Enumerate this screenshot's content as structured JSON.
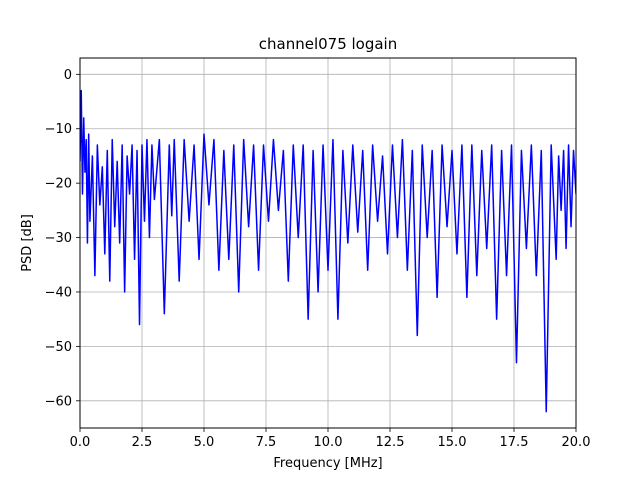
{
  "chart_data": {
    "type": "line",
    "title": "channel075 logain",
    "xlabel": "Frequency [MHz]",
    "ylabel": "PSD [dB]",
    "xlim": [
      0.0,
      20.0
    ],
    "ylim": [
      -65,
      3
    ],
    "xticks": [
      0.0,
      2.5,
      5.0,
      7.5,
      10.0,
      12.5,
      15.0,
      17.5,
      20.0
    ],
    "xtick_labels": [
      "0.0",
      "2.5",
      "5.0",
      "7.5",
      "10.0",
      "12.5",
      "15.0",
      "17.5",
      "20.0"
    ],
    "yticks": [
      0,
      -10,
      -20,
      -30,
      -40,
      -50,
      -60
    ],
    "ytick_labels": [
      "0",
      "−10",
      "−20",
      "−30",
      "−40",
      "−50",
      "−60"
    ],
    "grid": true,
    "series": [
      {
        "color": "#0000ff",
        "x": [
          0.0,
          0.05,
          0.1,
          0.15,
          0.2,
          0.25,
          0.3,
          0.35,
          0.4,
          0.5,
          0.6,
          0.7,
          0.8,
          0.9,
          1.0,
          1.1,
          1.2,
          1.3,
          1.4,
          1.5,
          1.6,
          1.7,
          1.8,
          1.9,
          2.0,
          2.1,
          2.2,
          2.3,
          2.4,
          2.5,
          2.6,
          2.7,
          2.8,
          2.9,
          3.0,
          3.2,
          3.4,
          3.6,
          3.7,
          3.8,
          4.0,
          4.2,
          4.4,
          4.6,
          4.8,
          5.0,
          5.2,
          5.4,
          5.6,
          5.8,
          6.0,
          6.2,
          6.4,
          6.6,
          6.8,
          7.0,
          7.2,
          7.4,
          7.6,
          7.8,
          8.0,
          8.2,
          8.4,
          8.6,
          8.8,
          9.0,
          9.2,
          9.4,
          9.6,
          9.8,
          10.0,
          10.2,
          10.4,
          10.6,
          10.8,
          11.0,
          11.2,
          11.4,
          11.6,
          11.8,
          12.0,
          12.2,
          12.4,
          12.6,
          12.8,
          13.0,
          13.2,
          13.4,
          13.6,
          13.8,
          14.0,
          14.2,
          14.4,
          14.6,
          14.8,
          15.0,
          15.2,
          15.4,
          15.6,
          15.8,
          16.0,
          16.2,
          16.4,
          16.6,
          16.8,
          17.0,
          17.2,
          17.4,
          17.6,
          17.8,
          18.0,
          18.2,
          18.4,
          18.6,
          18.8,
          19.0,
          19.2,
          19.3,
          19.4,
          19.5,
          19.6,
          19.7,
          19.8,
          19.9,
          20.0
        ],
        "y": [
          -16,
          -3,
          -22,
          -8,
          -18,
          -12,
          -31,
          -11,
          -27,
          -15,
          -37,
          -13,
          -24,
          -17,
          -33,
          -14,
          -38,
          -12,
          -28,
          -16,
          -31,
          -13,
          -40,
          -15,
          -22,
          -13,
          -34,
          -14,
          -46,
          -13,
          -27,
          -12,
          -30,
          -13,
          -23,
          -12,
          -44,
          -13,
          -26,
          -12,
          -38,
          -12,
          -27,
          -13,
          -34,
          -11,
          -24,
          -12,
          -36,
          -14,
          -34,
          -13,
          -40,
          -12,
          -28,
          -13,
          -36,
          -13,
          -27,
          -12,
          -25,
          -14,
          -38,
          -13,
          -30,
          -13,
          -45,
          -14,
          -40,
          -13,
          -36,
          -12,
          -45,
          -14,
          -31,
          -13,
          -29,
          -14,
          -36,
          -13,
          -27,
          -15,
          -33,
          -13,
          -30,
          -12,
          -36,
          -14,
          -48,
          -13,
          -30,
          -14,
          -41,
          -13,
          -28,
          -14,
          -33,
          -13,
          -41,
          -13,
          -37,
          -14,
          -32,
          -13,
          -45,
          -14,
          -37,
          -13,
          -53,
          -14,
          -32,
          -13,
          -37,
          -14,
          -62,
          -13,
          -34,
          -15,
          -25,
          -14,
          -32,
          -13,
          -28,
          -14,
          -22
        ]
      }
    ]
  }
}
